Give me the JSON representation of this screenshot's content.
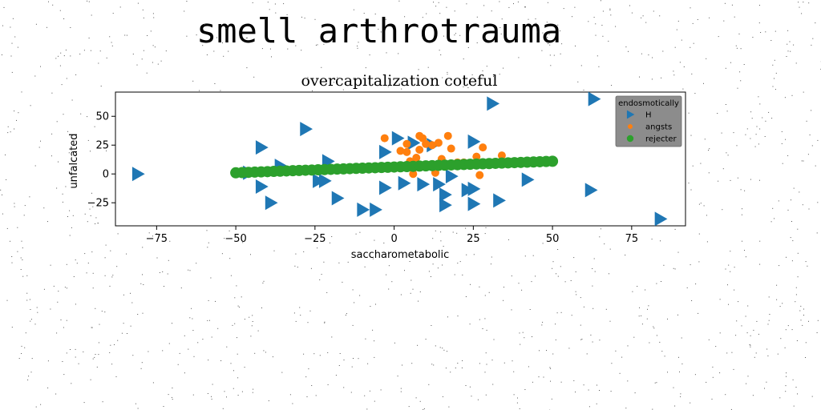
{
  "title": "smell arthrotrauma",
  "chart_data": {
    "type": "scatter",
    "title": "overcapitalization coteful",
    "xlabel": "saccharometabolic",
    "ylabel": "unfalcated",
    "xlim": [
      -88,
      92
    ],
    "ylim": [
      -45,
      71
    ],
    "xticks": [
      -75,
      -50,
      -25,
      0,
      25,
      50,
      75
    ],
    "xtick_labels": [
      "−75",
      "−50",
      "−25",
      "0",
      "25",
      "50",
      "75"
    ],
    "yticks": [
      -25,
      0,
      25,
      50
    ],
    "ytick_labels": [
      "−25",
      "0",
      "25",
      "50"
    ],
    "grid": false,
    "legend": {
      "title": "endosmotically",
      "position": "top-right"
    },
    "series": [
      {
        "name": "H",
        "marker": "triangle-right",
        "color": "#1f77b4",
        "points": [
          [
            -81,
            0
          ],
          [
            -46,
            1
          ],
          [
            -42,
            23
          ],
          [
            -42,
            -11
          ],
          [
            -39,
            -25
          ],
          [
            -36,
            7
          ],
          [
            -28,
            39
          ],
          [
            -24,
            -6
          ],
          [
            -21,
            11
          ],
          [
            -22,
            -6
          ],
          [
            -18,
            -21
          ],
          [
            -10,
            -31
          ],
          [
            -6,
            -31
          ],
          [
            -3,
            19
          ],
          [
            -3,
            -12
          ],
          [
            1,
            31
          ],
          [
            3,
            -8
          ],
          [
            6,
            27
          ],
          [
            9,
            -9
          ],
          [
            12,
            25
          ],
          [
            14,
            -9
          ],
          [
            16,
            -18
          ],
          [
            18,
            -2
          ],
          [
            16,
            -27
          ],
          [
            23,
            -14
          ],
          [
            25,
            -26
          ],
          [
            25,
            -13
          ],
          [
            25,
            28
          ],
          [
            31,
            61
          ],
          [
            33,
            -23
          ],
          [
            42,
            -5
          ],
          [
            62,
            -14
          ],
          [
            63,
            65
          ],
          [
            84,
            -39
          ]
        ]
      },
      {
        "name": "angsts",
        "marker": "circle-small",
        "color": "#ff7f0e",
        "points": [
          [
            -3,
            31
          ],
          [
            2,
            20
          ],
          [
            4,
            19
          ],
          [
            5,
            11
          ],
          [
            6,
            0
          ],
          [
            7,
            14
          ],
          [
            8,
            33
          ],
          [
            9,
            31
          ],
          [
            10,
            26
          ],
          [
            12,
            25
          ],
          [
            13,
            1
          ],
          [
            14,
            27
          ],
          [
            15,
            13
          ],
          [
            17,
            33
          ],
          [
            18,
            22
          ],
          [
            20,
            10
          ],
          [
            22,
            10
          ],
          [
            24,
            7
          ],
          [
            26,
            15
          ],
          [
            27,
            -1
          ],
          [
            28,
            23
          ],
          [
            34,
            16
          ],
          [
            8,
            21
          ],
          [
            4,
            26
          ],
          [
            13,
            6
          ]
        ]
      },
      {
        "name": "rejecter",
        "marker": "circle",
        "color": "#2ca02c",
        "points": [
          [
            -50,
            1
          ],
          [
            -48,
            1.2
          ],
          [
            -46,
            1.4
          ],
          [
            -44,
            1.6
          ],
          [
            -42,
            1.8
          ],
          [
            -40,
            2
          ],
          [
            -38,
            2.2
          ],
          [
            -36,
            2.4
          ],
          [
            -34,
            2.6
          ],
          [
            -32,
            2.8
          ],
          [
            -30,
            3
          ],
          [
            -28,
            3.2
          ],
          [
            -26,
            3.4
          ],
          [
            -24,
            3.6
          ],
          [
            -22,
            3.8
          ],
          [
            -20,
            4
          ],
          [
            -18,
            4.2
          ],
          [
            -16,
            4.4
          ],
          [
            -14,
            4.6
          ],
          [
            -12,
            4.8
          ],
          [
            -10,
            5
          ],
          [
            -8,
            5.2
          ],
          [
            -6,
            5.4
          ],
          [
            -4,
            5.6
          ],
          [
            -2,
            5.8
          ],
          [
            0,
            6
          ],
          [
            2,
            6.2
          ],
          [
            4,
            6.4
          ],
          [
            6,
            6.6
          ],
          [
            8,
            6.8
          ],
          [
            10,
            7
          ],
          [
            12,
            7.2
          ],
          [
            14,
            7.4
          ],
          [
            16,
            7.6
          ],
          [
            18,
            7.8
          ],
          [
            20,
            8
          ],
          [
            22,
            8.2
          ],
          [
            24,
            8.4
          ],
          [
            26,
            8.6
          ],
          [
            28,
            8.8
          ],
          [
            30,
            9
          ],
          [
            32,
            9.2
          ],
          [
            34,
            9.4
          ],
          [
            36,
            9.6
          ],
          [
            38,
            9.8
          ],
          [
            40,
            10
          ],
          [
            42,
            10.2
          ],
          [
            44,
            10.4
          ],
          [
            46,
            10.6
          ],
          [
            48,
            10.8
          ],
          [
            50,
            11
          ]
        ]
      }
    ]
  }
}
